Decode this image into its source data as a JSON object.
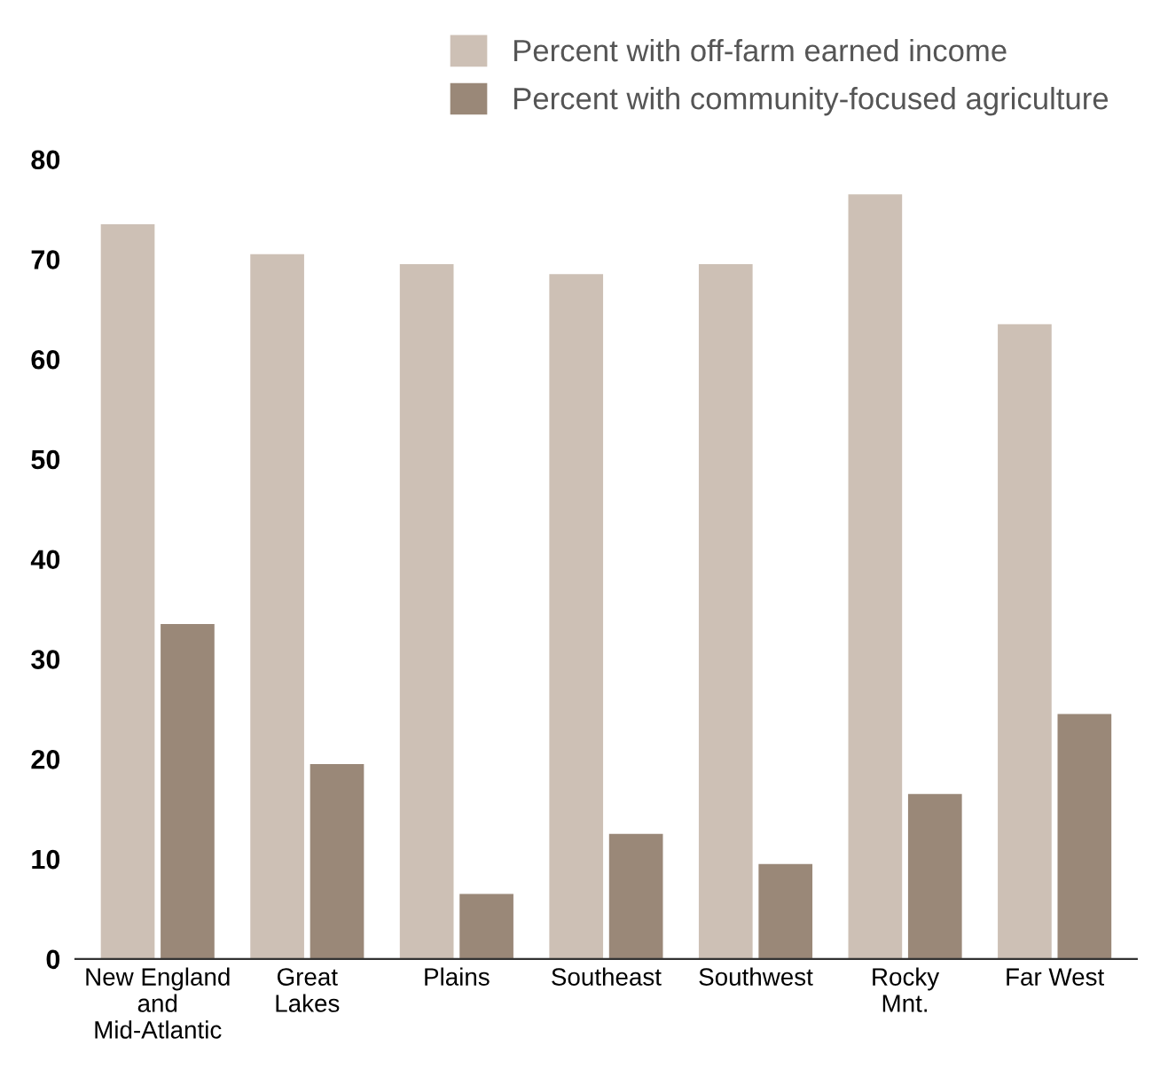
{
  "chart_data": {
    "type": "bar",
    "categories": [
      "New England\nand\nMid-Atlantic",
      "Great\nLakes",
      "Plains",
      "Southeast",
      "Southwest",
      "Rocky\nMnt.",
      "Far West"
    ],
    "series": [
      {
        "name": "Percent with off-farm earned income",
        "color": "#cdc0b5",
        "values": [
          73.5,
          70.5,
          69.5,
          68.5,
          69.5,
          76.5,
          63.5
        ]
      },
      {
        "name": "Percent with community-focused agriculture",
        "color": "#9a8878",
        "values": [
          33.5,
          19.5,
          6.5,
          12.5,
          9.5,
          16.5,
          24.5
        ]
      }
    ],
    "ylim": [
      0,
      80
    ],
    "yticks": [
      0,
      10,
      20,
      30,
      40,
      50,
      60,
      70,
      80
    ],
    "grid": false,
    "legend": "top right"
  }
}
